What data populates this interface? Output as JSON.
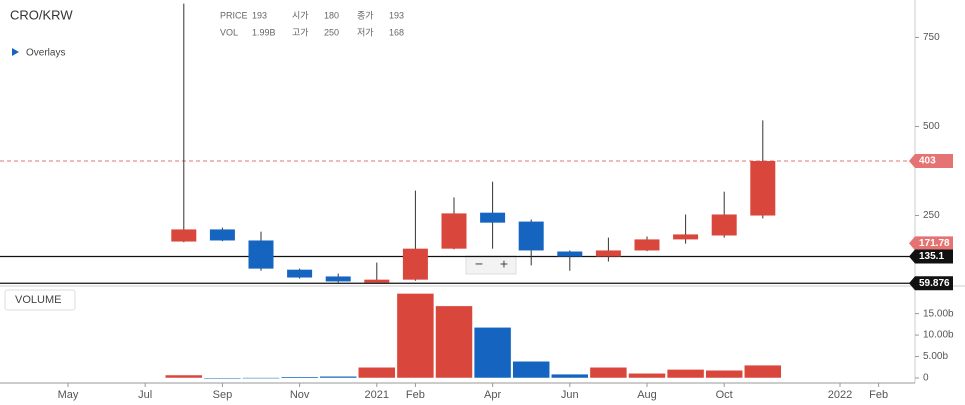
{
  "chart_data": {
    "type": "candlestick",
    "title": "CRO/KRW",
    "overlays_label": "Overlays",
    "info": [
      {
        "name": "PRICE",
        "value": "193"
      },
      {
        "name": "시가",
        "value": "180"
      },
      {
        "name": "종가",
        "value": "193"
      },
      {
        "name": "VOL",
        "value": "1.99B"
      },
      {
        "name": "고가",
        "value": "250"
      },
      {
        "name": "저가",
        "value": "168"
      }
    ],
    "categories": [
      "May",
      null,
      "Jul",
      null,
      "Sep",
      null,
      "Nov",
      null,
      "2021",
      "Feb",
      null,
      "Apr",
      null,
      "Jun",
      null,
      "Aug",
      null,
      "Oct",
      null,
      null,
      "2022",
      "Feb"
    ],
    "open": [
      null,
      null,
      null,
      177,
      211,
      180,
      98,
      79,
      62,
      70,
      157,
      258,
      233,
      149,
      135,
      152,
      183,
      194,
      250,
      null,
      null,
      null
    ],
    "high": [
      null,
      null,
      null,
      845,
      216,
      205,
      101,
      87,
      118,
      320,
      301,
      345,
      239,
      152,
      188,
      191,
      253,
      317,
      517,
      null,
      null,
      null
    ],
    "low": [
      null,
      null,
      null,
      175,
      178,
      95,
      73,
      62,
      59,
      67,
      155,
      157,
      110,
      95,
      121,
      150,
      171,
      188,
      242,
      null,
      null,
      null
    ],
    "close": [
      null,
      null,
      null,
      211,
      180,
      101,
      76,
      65,
      70,
      157,
      256,
      230,
      152,
      135,
      152,
      183,
      197,
      253,
      403,
      null,
      null,
      null
    ],
    "up_color": "#d9463b",
    "down_color": "#1565c0",
    "ylim": [
      55,
      855
    ],
    "yticks": [
      250,
      500,
      750
    ],
    "price_lines": [
      {
        "value": 403,
        "color": "#e57373",
        "dashed": true
      },
      {
        "value": 171.78,
        "color": "#e57373",
        "dashed": false,
        "label_only": true
      },
      {
        "value": 135.1,
        "color": "#111111",
        "dashed": false
      },
      {
        "value": 59.876,
        "color": "#111111",
        "dashed": false
      }
    ],
    "volume_label": "VOLUME",
    "volume": [
      null,
      null,
      null,
      0.7,
      0.05,
      0.1,
      0.3,
      0.4,
      2.5,
      19.7,
      16.8,
      11.8,
      3.9,
      0.9,
      2.5,
      1.1,
      2.0,
      1.8,
      3.0,
      null,
      null,
      null
    ],
    "vlim": [
      0,
      20.5
    ],
    "vticks": [
      0,
      {
        "value": 5,
        "label": "5.00b"
      },
      {
        "value": 10,
        "label": "10.00b"
      },
      {
        "value": 15,
        "label": "15.00b"
      }
    ],
    "zoom_out": "−",
    "zoom_in": "+"
  }
}
